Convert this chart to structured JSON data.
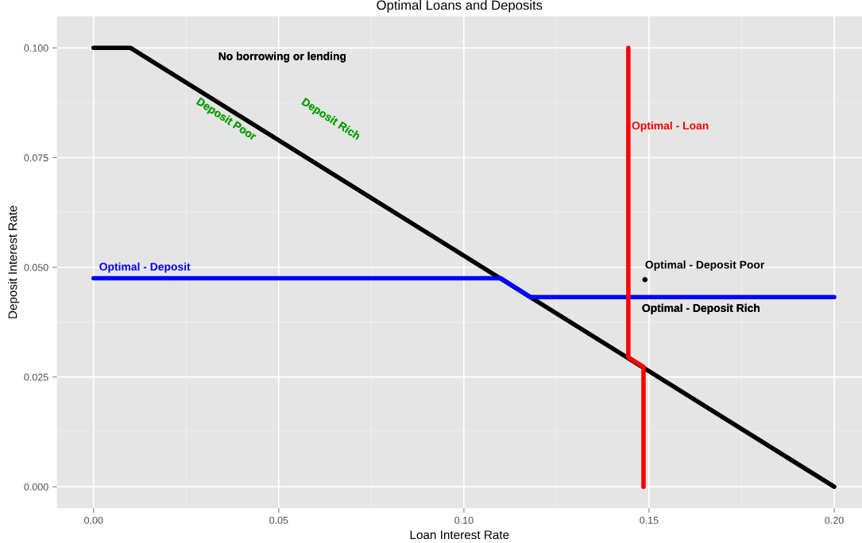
{
  "chart_data": {
    "type": "line",
    "title": "Optimal Loans and Deposits",
    "xlabel": "Loan Interest Rate",
    "ylabel": "Deposit Interest Rate",
    "xlim": [
      -0.0099,
      0.2075
    ],
    "ylim": [
      -0.0049,
      0.1072
    ],
    "xticks": [
      {
        "value": 0,
        "label": "0.00"
      },
      {
        "value": 0.05,
        "label": "0.05"
      },
      {
        "value": 0.1,
        "label": "0.10"
      },
      {
        "value": 0.15,
        "label": "0.15"
      },
      {
        "value": 0.2,
        "label": "0.20"
      }
    ],
    "yticks": [
      {
        "value": 0,
        "label": "0.000"
      },
      {
        "value": 0.025,
        "label": "0.025"
      },
      {
        "value": 0.05,
        "label": "0.050"
      },
      {
        "value": 0.075,
        "label": "0.075"
      },
      {
        "value": 0.1,
        "label": "0.100"
      }
    ],
    "grid": true,
    "marker": "none",
    "line_style": "solid",
    "series": [
      {
        "color": "#000000",
        "x": [
          0,
          0.01,
          0.2
        ],
        "values": [
          0.1,
          0.1,
          0
        ]
      },
      {
        "name": "Optimal - Deposit",
        "color": "#0000ff",
        "x": [
          0,
          0.11,
          0.118,
          0.2
        ],
        "values": [
          0.0475,
          0.0475,
          0.0432,
          0.0432
        ]
      },
      {
        "name": "Optimal - Loan",
        "color": "#ff0000",
        "x": [
          0.1444,
          0.1444,
          0.1485,
          0.1485
        ],
        "values": [
          0.1,
          0.0295,
          0.0273,
          0
        ]
      },
      {
        "type": "scatter",
        "name": "Optimal - Deposit Poor",
        "color": "#000000",
        "x": [
          0.1489
        ],
        "values": [
          0.0472
        ]
      }
    ],
    "annotations": [
      "No borrowing or lending",
      "Deposit Poor",
      "Deposit Rich",
      "Optimal - Deposit Rich"
    ]
  }
}
